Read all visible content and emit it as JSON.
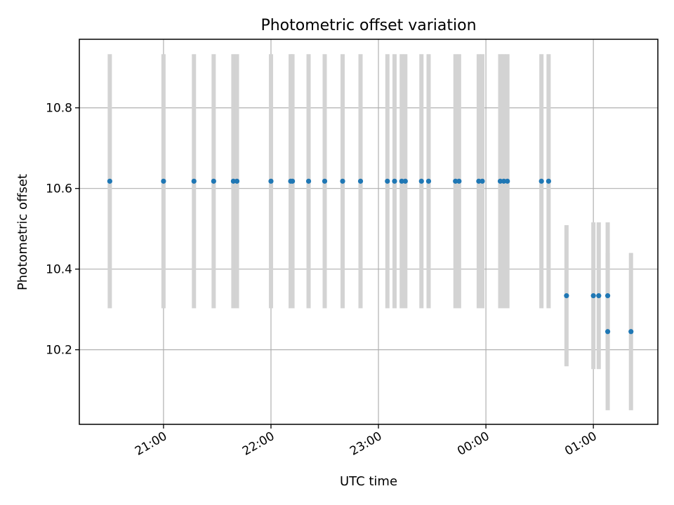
{
  "chart_data": {
    "type": "scatter",
    "title": "Photometric offset variation",
    "xlabel": "UTC time",
    "ylabel": "Photometric offset",
    "x_ticks": [
      "21:00",
      "22:00",
      "23:00",
      "00:00",
      "01:00"
    ],
    "y_ticks": [
      "10.2",
      "10.4",
      "10.6",
      "10.8"
    ],
    "y_tick_values": [
      10.2,
      10.4,
      10.6,
      10.8
    ],
    "xlim_hours": [
      20.2167,
      25.6
    ],
    "ylim": [
      10.015,
      10.97
    ],
    "grid": true,
    "error_color": "#d3d3d3",
    "marker_color": "#1f77b4",
    "points": [
      {
        "time": "20:30",
        "y": 10.618,
        "err": 0.315
      },
      {
        "time": "21:00",
        "y": 10.618,
        "err": 0.315
      },
      {
        "time": "21:17",
        "y": 10.618,
        "err": 0.315
      },
      {
        "time": "21:28",
        "y": 10.618,
        "err": 0.315
      },
      {
        "time": "21:39",
        "y": 10.618,
        "err": 0.315
      },
      {
        "time": "21:41",
        "y": 10.618,
        "err": 0.315
      },
      {
        "time": "22:00",
        "y": 10.618,
        "err": 0.315
      },
      {
        "time": "22:11",
        "y": 10.618,
        "err": 0.315
      },
      {
        "time": "22:12",
        "y": 10.618,
        "err": 0.315
      },
      {
        "time": "22:21",
        "y": 10.618,
        "err": 0.315
      },
      {
        "time": "22:30",
        "y": 10.618,
        "err": 0.315
      },
      {
        "time": "22:40",
        "y": 10.618,
        "err": 0.315
      },
      {
        "time": "22:50",
        "y": 10.618,
        "err": 0.315
      },
      {
        "time": "23:05",
        "y": 10.618,
        "err": 0.315
      },
      {
        "time": "23:09",
        "y": 10.618,
        "err": 0.315
      },
      {
        "time": "23:13",
        "y": 10.618,
        "err": 0.315
      },
      {
        "time": "23:15",
        "y": 10.618,
        "err": 0.315
      },
      {
        "time": "23:24",
        "y": 10.618,
        "err": 0.315
      },
      {
        "time": "23:28",
        "y": 10.618,
        "err": 0.315
      },
      {
        "time": "23:43",
        "y": 10.618,
        "err": 0.315
      },
      {
        "time": "23:45",
        "y": 10.618,
        "err": 0.315
      },
      {
        "time": "23:56",
        "y": 10.618,
        "err": 0.315
      },
      {
        "time": "23:58",
        "y": 10.618,
        "err": 0.315
      },
      {
        "time": "00:08",
        "y": 10.618,
        "err": 0.315
      },
      {
        "time": "00:10",
        "y": 10.618,
        "err": 0.315
      },
      {
        "time": "00:12",
        "y": 10.618,
        "err": 0.315
      },
      {
        "time": "00:31",
        "y": 10.618,
        "err": 0.315
      },
      {
        "time": "00:35",
        "y": 10.618,
        "err": 0.315
      },
      {
        "time": "00:45",
        "y": 10.334,
        "err": 0.175
      },
      {
        "time": "01:00",
        "y": 10.334,
        "err": 0.182
      },
      {
        "time": "01:03",
        "y": 10.334,
        "err": 0.182
      },
      {
        "time": "01:08",
        "y": 10.334,
        "err": 0.182
      },
      {
        "time": "01:08",
        "y": 10.245,
        "err": 0.195
      },
      {
        "time": "01:21",
        "y": 10.245,
        "err": 0.195
      }
    ]
  }
}
